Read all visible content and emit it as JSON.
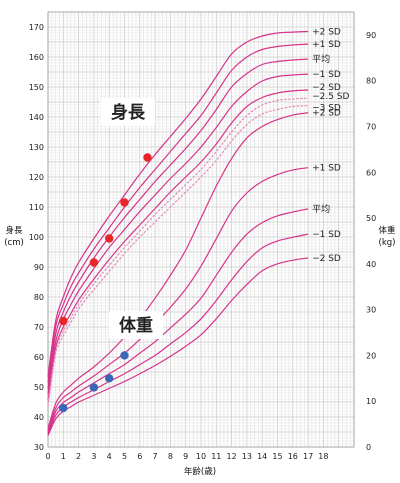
{
  "chart_data": {
    "type": "line",
    "title": "",
    "xlabel": "年齢(歳)",
    "x_ticks": [
      0,
      1,
      2,
      3,
      4,
      5,
      6,
      7,
      8,
      9,
      10,
      11,
      12,
      13,
      14,
      15,
      16,
      17,
      18
    ],
    "xlim": [
      0,
      20
    ],
    "height_axis": {
      "label_line1": "身長",
      "label_line2": "(cm)",
      "ylim": [
        30,
        175
      ],
      "ticks": [
        30,
        40,
        50,
        60,
        70,
        80,
        90,
        100,
        110,
        120,
        130,
        140,
        150,
        160,
        170
      ]
    },
    "weight_axis": {
      "label_line1": "体重",
      "label_line2": "(kg)",
      "ylim": [
        0,
        95
      ],
      "ticks": [
        0,
        10,
        20,
        30,
        40,
        50,
        60,
        70,
        80,
        90
      ]
    },
    "height_title": "身長",
    "weight_title": "体重",
    "colors": {
      "curve": "#d6338a",
      "curve_light": "#e38bb8",
      "grid": "#c8c8c8",
      "height_points": "#e8262a",
      "weight_points": "#3a68b8"
    },
    "ages": [
      0,
      0.5,
      1,
      1.5,
      2,
      3,
      4,
      5,
      6,
      7,
      8,
      9,
      10,
      11,
      12,
      13,
      14,
      15,
      16,
      17
    ],
    "height_series": [
      {
        "name": "+2 SD",
        "values": [
          53.5,
          72,
          80,
          86.5,
          91.5,
          99.5,
          107,
          114,
          121,
          127.5,
          133.5,
          139.5,
          146,
          153.5,
          161,
          165,
          167,
          168,
          168.3,
          168.5
        ]
      },
      {
        "name": "+1 SD",
        "values": [
          51.5,
          70,
          77.5,
          83.5,
          88,
          96,
          103,
          110,
          116.5,
          122.5,
          128.5,
          134.5,
          140.5,
          148,
          155.5,
          160,
          162.5,
          163.5,
          164,
          164.3
        ]
      },
      {
        "name": "平均",
        "values": [
          49.5,
          67.5,
          75,
          80.5,
          85,
          93,
          100,
          106.5,
          112.5,
          118.5,
          124,
          129.5,
          135.5,
          142.5,
          150,
          154.5,
          157.5,
          158.5,
          159,
          159.3
        ]
      },
      {
        "name": "−1 SD",
        "values": [
          47.5,
          65,
          72.5,
          77.5,
          82,
          89.5,
          96.5,
          102.5,
          108.5,
          114,
          119.5,
          124.5,
          130,
          136.5,
          143.5,
          148.5,
          152,
          153.5,
          154,
          154.3
        ]
      },
      {
        "name": "−2 SD",
        "values": [
          45.5,
          63,
          70,
          74.5,
          79,
          86,
          92.5,
          98.5,
          104,
          109.5,
          115,
          120,
          125,
          131,
          138,
          143.5,
          146.5,
          148,
          148.7,
          149
        ]
      },
      {
        "name": "−2.5 SD",
        "values": [
          44.5,
          62,
          68.5,
          73,
          77.5,
          84.5,
          90.5,
          96.5,
          102,
          107.5,
          112.5,
          117.5,
          122.5,
          128.5,
          135,
          140.5,
          144,
          145.5,
          146,
          146.3
        ]
      },
      {
        "name": "−3 SD",
        "values": [
          43.5,
          61,
          67,
          71.5,
          76,
          82.5,
          88.5,
          94.5,
          100,
          105,
          110,
          115,
          120,
          125.5,
          132,
          137.5,
          141,
          142.5,
          143.5,
          143.8
        ]
      }
    ],
    "weight_series": [
      {
        "name": "+2 SD",
        "values": [
          4,
          9.5,
          12,
          13.5,
          15,
          17.5,
          20.5,
          24,
          28,
          32.5,
          37.5,
          43,
          50,
          57,
          63,
          67.5,
          70,
          71.5,
          72.5,
          73
        ]
      },
      {
        "name": "+1 SD",
        "values": [
          3.5,
          8.5,
          10.8,
          12,
          13.3,
          15.5,
          18,
          20.5,
          23.5,
          27,
          30.5,
          34.5,
          39.5,
          45.5,
          51.5,
          55.5,
          58,
          59.5,
          60.5,
          61
        ]
      },
      {
        "name": "平均",
        "values": [
          3.1,
          7.7,
          9.7,
          10.8,
          12,
          14,
          16,
          18,
          20.5,
          23,
          26,
          29,
          32.5,
          37.5,
          42.5,
          46.5,
          49,
          50.5,
          51.3,
          52
        ]
      },
      {
        "name": "−1 SD",
        "values": [
          2.8,
          6.9,
          8.7,
          9.8,
          10.8,
          12.5,
          14.3,
          16,
          18,
          20,
          22.5,
          25,
          28,
          32,
          36.5,
          40.5,
          43.5,
          45,
          45.8,
          46.5
        ]
      },
      {
        "name": "−2 SD",
        "values": [
          2.5,
          6.1,
          7.8,
          8.8,
          9.8,
          11.3,
          12.8,
          14.3,
          16,
          17.8,
          19.8,
          22,
          24.5,
          28,
          32,
          35.5,
          38.5,
          40,
          40.8,
          41.3
        ]
      }
    ],
    "height_points": [
      {
        "age": 1,
        "height": 72
      },
      {
        "age": 3,
        "height": 91.5
      },
      {
        "age": 4,
        "height": 99.5
      },
      {
        "age": 5,
        "height": 111.5
      },
      {
        "age": 6.5,
        "height": 126.5
      }
    ],
    "weight_points": [
      {
        "age": 1,
        "weight": 8.5
      },
      {
        "age": 3,
        "weight": 13
      },
      {
        "age": 4,
        "weight": 15
      },
      {
        "age": 5,
        "weight": 20
      },
      {
        "age": 6.5,
        "weight": 26
      }
    ]
  }
}
